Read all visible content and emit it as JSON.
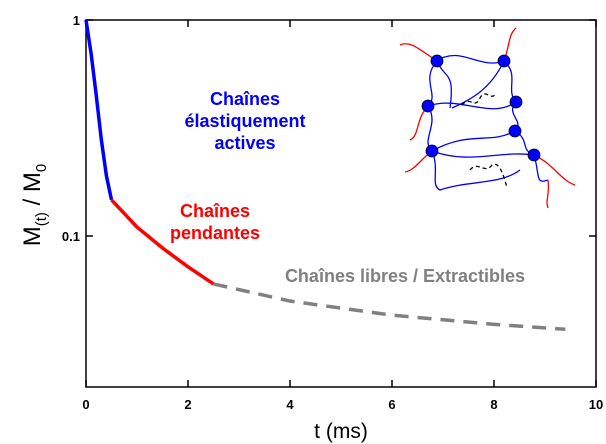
{
  "chart_data": {
    "type": "line",
    "xlabel": "t (ms)",
    "ylabel_parts": [
      "M",
      "(t)",
      " / M",
      "0"
    ],
    "xlim": [
      0,
      10
    ],
    "ylim": [
      0.02,
      1
    ],
    "xticks": [
      0,
      2,
      4,
      6,
      8,
      10
    ],
    "yticks": [
      0.1,
      1
    ],
    "log_y": true,
    "series": [
      {
        "name": "Chaînes élastiquement actives",
        "color": "#0000ff",
        "dash": false,
        "x": [
          0,
          0.1,
          0.2,
          0.3,
          0.4,
          0.5
        ],
        "values": [
          1,
          0.7,
          0.45,
          0.28,
          0.19,
          0.147
        ]
      },
      {
        "name": "Chaînes pendantes",
        "color": "#ff0000",
        "dash": false,
        "x": [
          0.5,
          1,
          1.5,
          2,
          2.5
        ],
        "values": [
          0.147,
          0.11,
          0.088,
          0.072,
          0.06
        ]
      },
      {
        "name": "Chaînes libres / Extractibles",
        "color": "#808080",
        "dash": true,
        "x": [
          2.5,
          4,
          6,
          8,
          9.4
        ],
        "values": [
          0.06,
          0.05,
          0.043,
          0.039,
          0.037
        ]
      }
    ]
  }
}
